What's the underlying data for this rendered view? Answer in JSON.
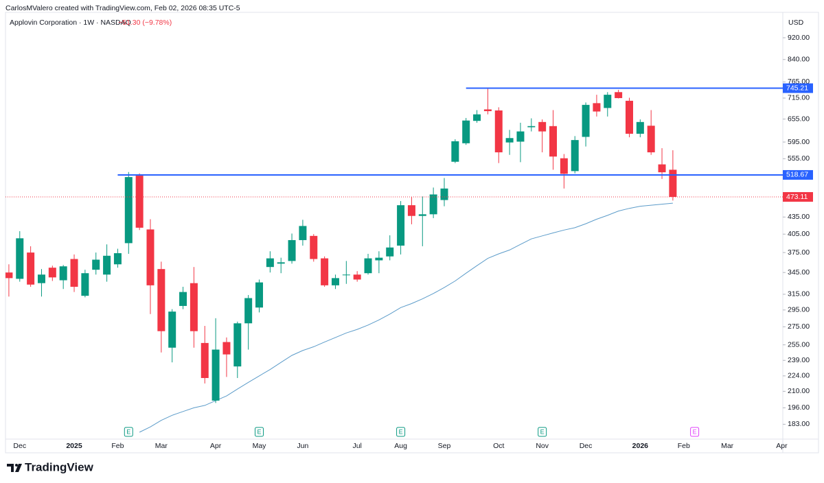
{
  "header": {
    "attribution": "CarlosMValero created with TradingView.com, Feb 02, 2026 08:35 UTC-5",
    "symbol": "Applovin Corporation · 1W · NASDAQ",
    "change": "−51.30 (−9.78%)",
    "currency": "USD"
  },
  "brand": "TradingView",
  "chart_data": {
    "type": "candlestick",
    "log_scale": true,
    "up_color": "#089981",
    "down_color": "#f23645",
    "xlim": [
      -0.31,
      71.1
    ],
    "ylim": [
      172,
      1023
    ],
    "xticks": [
      {
        "value": 1,
        "label": "Dec"
      },
      {
        "value": 6,
        "label": "2025"
      },
      {
        "value": 10,
        "label": "Feb"
      },
      {
        "value": 14,
        "label": "Mar"
      },
      {
        "value": 19,
        "label": "Apr"
      },
      {
        "value": 23,
        "label": "May"
      },
      {
        "value": 27,
        "label": "Jun"
      },
      {
        "value": 32,
        "label": "Jul"
      },
      {
        "value": 36,
        "label": "Aug"
      },
      {
        "value": 40,
        "label": "Sep"
      },
      {
        "value": 45,
        "label": "Oct"
      },
      {
        "value": 49,
        "label": "Nov"
      },
      {
        "value": 53,
        "label": "Dec"
      },
      {
        "value": 58,
        "label": "2026"
      },
      {
        "value": 62,
        "label": "Feb"
      },
      {
        "value": 66,
        "label": "Mar"
      },
      {
        "value": 71,
        "label": "Apr"
      }
    ],
    "yticks": [
      {
        "value": 920,
        "label": "920.00"
      },
      {
        "value": 840,
        "label": "840.00"
      },
      {
        "value": 765,
        "label": "765.00"
      },
      {
        "value": 715,
        "label": "715.00"
      },
      {
        "value": 655,
        "label": "655.00"
      },
      {
        "value": 595,
        "label": "595.00"
      },
      {
        "value": 555,
        "label": "555.00"
      },
      {
        "value": 435,
        "label": "435.00"
      },
      {
        "value": 405,
        "label": "405.00"
      },
      {
        "value": 375,
        "label": "375.00"
      },
      {
        "value": 345,
        "label": "345.00"
      },
      {
        "value": 315,
        "label": "315.00"
      },
      {
        "value": 295,
        "label": "295.00"
      },
      {
        "value": 275,
        "label": "275.00"
      },
      {
        "value": 255,
        "label": "255.00"
      },
      {
        "value": 239,
        "label": "239.00"
      },
      {
        "value": 224,
        "label": "224.00"
      },
      {
        "value": 210,
        "label": "210.00"
      },
      {
        "value": 196,
        "label": "196.00"
      },
      {
        "value": 183,
        "label": "183.00"
      }
    ],
    "candles": {
      "open": [
        345,
        336,
        375,
        330,
        352,
        334,
        365,
        313,
        349,
        342,
        357,
        390,
        517,
        413,
        350,
        252,
        300,
        330,
        257,
        202,
        258,
        233,
        279,
        298,
        353,
        358,
        362,
        395,
        402,
        366,
        327,
        341,
        342,
        344,
        363,
        369,
        386,
        457,
        437,
        440,
        467,
        548,
        592,
        650,
        682,
        679,
        594,
        596,
        633,
        647,
        636,
        556,
        527,
        608,
        700,
        686,
        733,
        707,
        616,
        637,
        542,
        530
      ],
      "high": [
        357,
        410,
        385,
        350,
        355,
        356,
        372,
        349,
        375,
        388,
        381,
        525,
        522,
        431,
        361,
        296,
        325,
        353,
        276,
        285,
        263,
        281,
        314,
        335,
        377,
        367,
        406,
        430,
        405,
        369,
        342,
        362,
        347,
        373,
        377,
        403,
        465,
        473,
        474,
        492,
        512,
        602,
        658,
        680,
        745,
        688,
        626,
        645,
        657,
        654,
        680,
        566,
        610,
        702,
        725,
        733,
        740,
        716,
        654,
        680,
        580,
        575
      ],
      "low": [
        312,
        332,
        325,
        312,
        333,
        322,
        318,
        311,
        342,
        332,
        352,
        373,
        412,
        290,
        247,
        237,
        296,
        252,
        217,
        200,
        223,
        222,
        250,
        292,
        345,
        344,
        358,
        386,
        361,
        325,
        322,
        329,
        332,
        342,
        344,
        363,
        372,
        422,
        385,
        433,
        455,
        545,
        588,
        645,
        668,
        545,
        564,
        547,
        622,
        570,
        530,
        490,
        522,
        584,
        662,
        662,
        714,
        607,
        607,
        564,
        510,
        466
      ],
      "close": [
        337,
        398,
        328,
        342,
        338,
        354,
        325,
        344,
        364,
        370,
        374,
        514,
        416,
        327,
        270,
        293,
        318,
        270,
        222,
        250,
        245,
        279,
        310,
        331,
        366,
        360,
        395,
        419,
        365,
        327,
        337,
        342,
        335,
        366,
        367,
        383,
        457,
        437,
        440,
        478,
        490,
        597,
        651,
        668,
        677,
        570,
        605,
        622,
        636,
        622,
        560,
        521,
        600,
        695,
        676,
        725,
        715,
        616,
        647,
        570,
        524.41,
        473.11
      ]
    },
    "moving_average": {
      "color": "#5b9bc9",
      "values": [
        null,
        null,
        null,
        null,
        null,
        null,
        null,
        null,
        null,
        null,
        null,
        null,
        177,
        181,
        186,
        190,
        193,
        196,
        198,
        202,
        206,
        212,
        218,
        224,
        230,
        237,
        244,
        249,
        253,
        258,
        263,
        268,
        272,
        277,
        283,
        290,
        298,
        303,
        309,
        316,
        324,
        333,
        344,
        355,
        366,
        373,
        379,
        388,
        397,
        402,
        407,
        412,
        416,
        423,
        431,
        438,
        446,
        451,
        455,
        457,
        459,
        461
      ]
    },
    "levels": [
      {
        "value": 745.21,
        "x_start": 42,
        "color": "#2962ff"
      },
      {
        "value": 518.67,
        "x_start": 10,
        "color": "#2962ff"
      }
    ],
    "earnings": [
      {
        "x": 11,
        "label": "E",
        "color": "#089981"
      },
      {
        "x": 23,
        "label": "E",
        "color": "#089981"
      },
      {
        "x": 36,
        "label": "E",
        "color": "#089981"
      },
      {
        "x": 49,
        "label": "E",
        "color": "#089981"
      },
      {
        "x": 63,
        "label": "E",
        "color": "#e040fb"
      }
    ]
  }
}
